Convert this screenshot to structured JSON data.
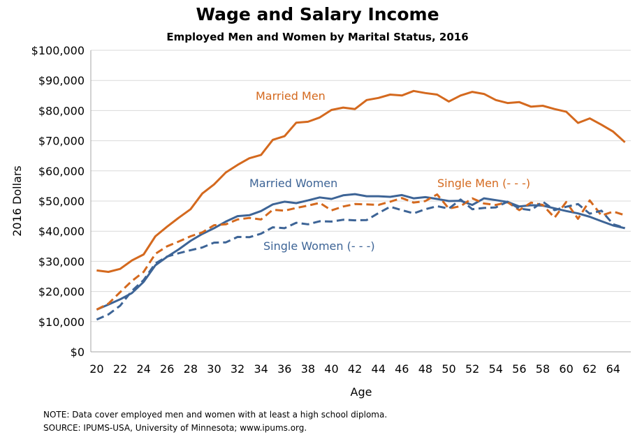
{
  "title": "Wage and Salary Income",
  "subtitle": "Employed Men and Women by Marital Status, 2016",
  "note": "NOTE: Data cover employed men and women with at least a high school diploma.",
  "source": "SOURCE: IPUMS-USA,  University of Minnesota; www.ipums.org.",
  "colors": {
    "men": "#d4691e",
    "women": "#3d6496",
    "grid": "#d9d9d9"
  },
  "chart_data": {
    "type": "line",
    "xlabel": "Age",
    "ylabel": "2016 Dollars",
    "xlim": [
      20,
      65
    ],
    "ylim": [
      0,
      100000
    ],
    "grid": true,
    "x_ticks": [
      20,
      22,
      24,
      26,
      28,
      30,
      32,
      34,
      36,
      38,
      40,
      42,
      44,
      46,
      48,
      50,
      52,
      54,
      56,
      58,
      60,
      62,
      64
    ],
    "y_ticks": [
      0,
      10000,
      20000,
      30000,
      40000,
      50000,
      60000,
      70000,
      80000,
      90000,
      100000
    ],
    "y_tick_labels": [
      "$0",
      "$10,000",
      "$20,000",
      "$30,000",
      "$40,000",
      "$50,000",
      "$60,000",
      "$70,000",
      "$80,000",
      "$90,000",
      "$100,000"
    ],
    "x": [
      20,
      21,
      22,
      23,
      24,
      25,
      26,
      27,
      28,
      29,
      30,
      31,
      32,
      33,
      34,
      35,
      36,
      37,
      38,
      39,
      40,
      41,
      42,
      43,
      44,
      45,
      46,
      47,
      48,
      49,
      50,
      51,
      52,
      53,
      54,
      55,
      56,
      57,
      58,
      59,
      60,
      61,
      62,
      63,
      64,
      65
    ],
    "series": [
      {
        "name": "Married Men",
        "style": "solid",
        "color": "#d4691e",
        "values": [
          27000,
          26500,
          27500,
          30300,
          32300,
          38300,
          41500,
          44500,
          47300,
          52500,
          55500,
          59500,
          62000,
          64200,
          65300,
          70300,
          71500,
          76000,
          76300,
          77700,
          80200,
          81000,
          80500,
          83500,
          84200,
          85300,
          85000,
          86500,
          85800,
          85300,
          83000,
          85000,
          86200,
          85500,
          83500,
          82500,
          82800,
          81300,
          81600,
          80500,
          79600,
          75900,
          77400,
          75300,
          73000,
          69500
        ]
      },
      {
        "name": "Married Women",
        "style": "solid",
        "color": "#3d6496",
        "values": [
          14000,
          15700,
          17400,
          19500,
          23200,
          28700,
          31500,
          34000,
          36800,
          39100,
          41000,
          43200,
          45000,
          45300,
          46700,
          48900,
          49800,
          49300,
          50200,
          51200,
          50700,
          51900,
          52300,
          51600,
          51600,
          51400,
          52000,
          50900,
          51300,
          50700,
          50000,
          50100,
          48700,
          50900,
          50300,
          49700,
          48200,
          48600,
          48500,
          47600,
          46700,
          45900,
          44800,
          43300,
          41900,
          41000
        ]
      },
      {
        "name": "Single Men",
        "style": "dashed",
        "color": "#d4691e",
        "values": [
          14000,
          16000,
          19800,
          23500,
          26500,
          32500,
          35000,
          36600,
          38300,
          39600,
          42000,
          42300,
          43900,
          44400,
          43900,
          47100,
          46800,
          47700,
          48500,
          49400,
          46900,
          48200,
          49000,
          48900,
          48700,
          49800,
          51000,
          49500,
          50000,
          52200,
          47500,
          48300,
          50900,
          49200,
          48700,
          49600,
          47000,
          49500,
          48700,
          44500,
          49700,
          44100,
          50200,
          45200,
          46500,
          45300
        ]
      },
      {
        "name": "Single Women",
        "style": "dashed",
        "color": "#3d6496",
        "values": [
          10700,
          12400,
          15300,
          20200,
          23800,
          29300,
          31600,
          32700,
          33700,
          34600,
          36200,
          36300,
          38100,
          38000,
          39200,
          41300,
          41000,
          42800,
          42300,
          43300,
          43200,
          43800,
          43600,
          43700,
          46000,
          48100,
          47000,
          45900,
          47300,
          48300,
          47500,
          50500,
          47300,
          47700,
          47900,
          49800,
          47500,
          47000,
          49800,
          47000,
          48100,
          49000,
          45800,
          46800,
          42300,
          41100
        ]
      }
    ],
    "annotations": [
      {
        "text": "Married Men",
        "color": "#d4691e"
      },
      {
        "text": "Married Women",
        "color": "#3d6496"
      },
      {
        "text": "Single Men (- - -)",
        "color": "#d4691e"
      },
      {
        "text": "Single Women (- - -)",
        "color": "#3d6496"
      }
    ]
  }
}
